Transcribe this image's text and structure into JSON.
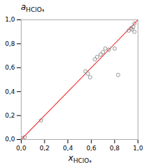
{
  "chart_data": {
    "type": "scatter",
    "title": "aHClO₄",
    "xlabel": "xHClO₄",
    "xlim": [
      0.0,
      1.0
    ],
    "ylim": [
      0.0,
      1.0
    ],
    "xticks": [
      {
        "value": 0.0,
        "label": "0,0"
      },
      {
        "value": 0.2,
        "label": "0,2"
      },
      {
        "value": 0.4,
        "label": "0,4"
      },
      {
        "value": 0.6,
        "label": "0,6"
      },
      {
        "value": 0.8,
        "label": "0,8"
      },
      {
        "value": 1.0,
        "label": "1,0"
      }
    ],
    "yticks": [
      {
        "value": 0.0,
        "label": "0,0"
      },
      {
        "value": 0.2,
        "label": "0,2"
      },
      {
        "value": 0.4,
        "label": "0,4"
      },
      {
        "value": 0.6,
        "label": "0,6"
      },
      {
        "value": 0.8,
        "label": "0,8"
      },
      {
        "value": 1.0,
        "label": "1,0"
      }
    ],
    "series": [
      {
        "type": "line",
        "color": "#EE3333",
        "line_style": "solid",
        "x": [
          0.0,
          1.0
        ],
        "values": [
          0.0,
          1.0
        ]
      },
      {
        "type": "scatter",
        "color": "#888888",
        "marker": "open_circle",
        "x": [
          0.01,
          0.03,
          0.17,
          0.55,
          0.57,
          0.59,
          0.63,
          0.65,
          0.68,
          0.7,
          0.72,
          0.75,
          0.8,
          0.83,
          0.92,
          0.94,
          0.95,
          0.96,
          0.97,
          0.97
        ],
        "values": [
          0.01,
          0.02,
          0.16,
          0.57,
          0.55,
          0.52,
          0.67,
          0.69,
          0.71,
          0.73,
          0.76,
          0.75,
          0.76,
          0.54,
          0.91,
          0.93,
          0.92,
          0.94,
          0.9,
          0.97
        ]
      }
    ]
  }
}
